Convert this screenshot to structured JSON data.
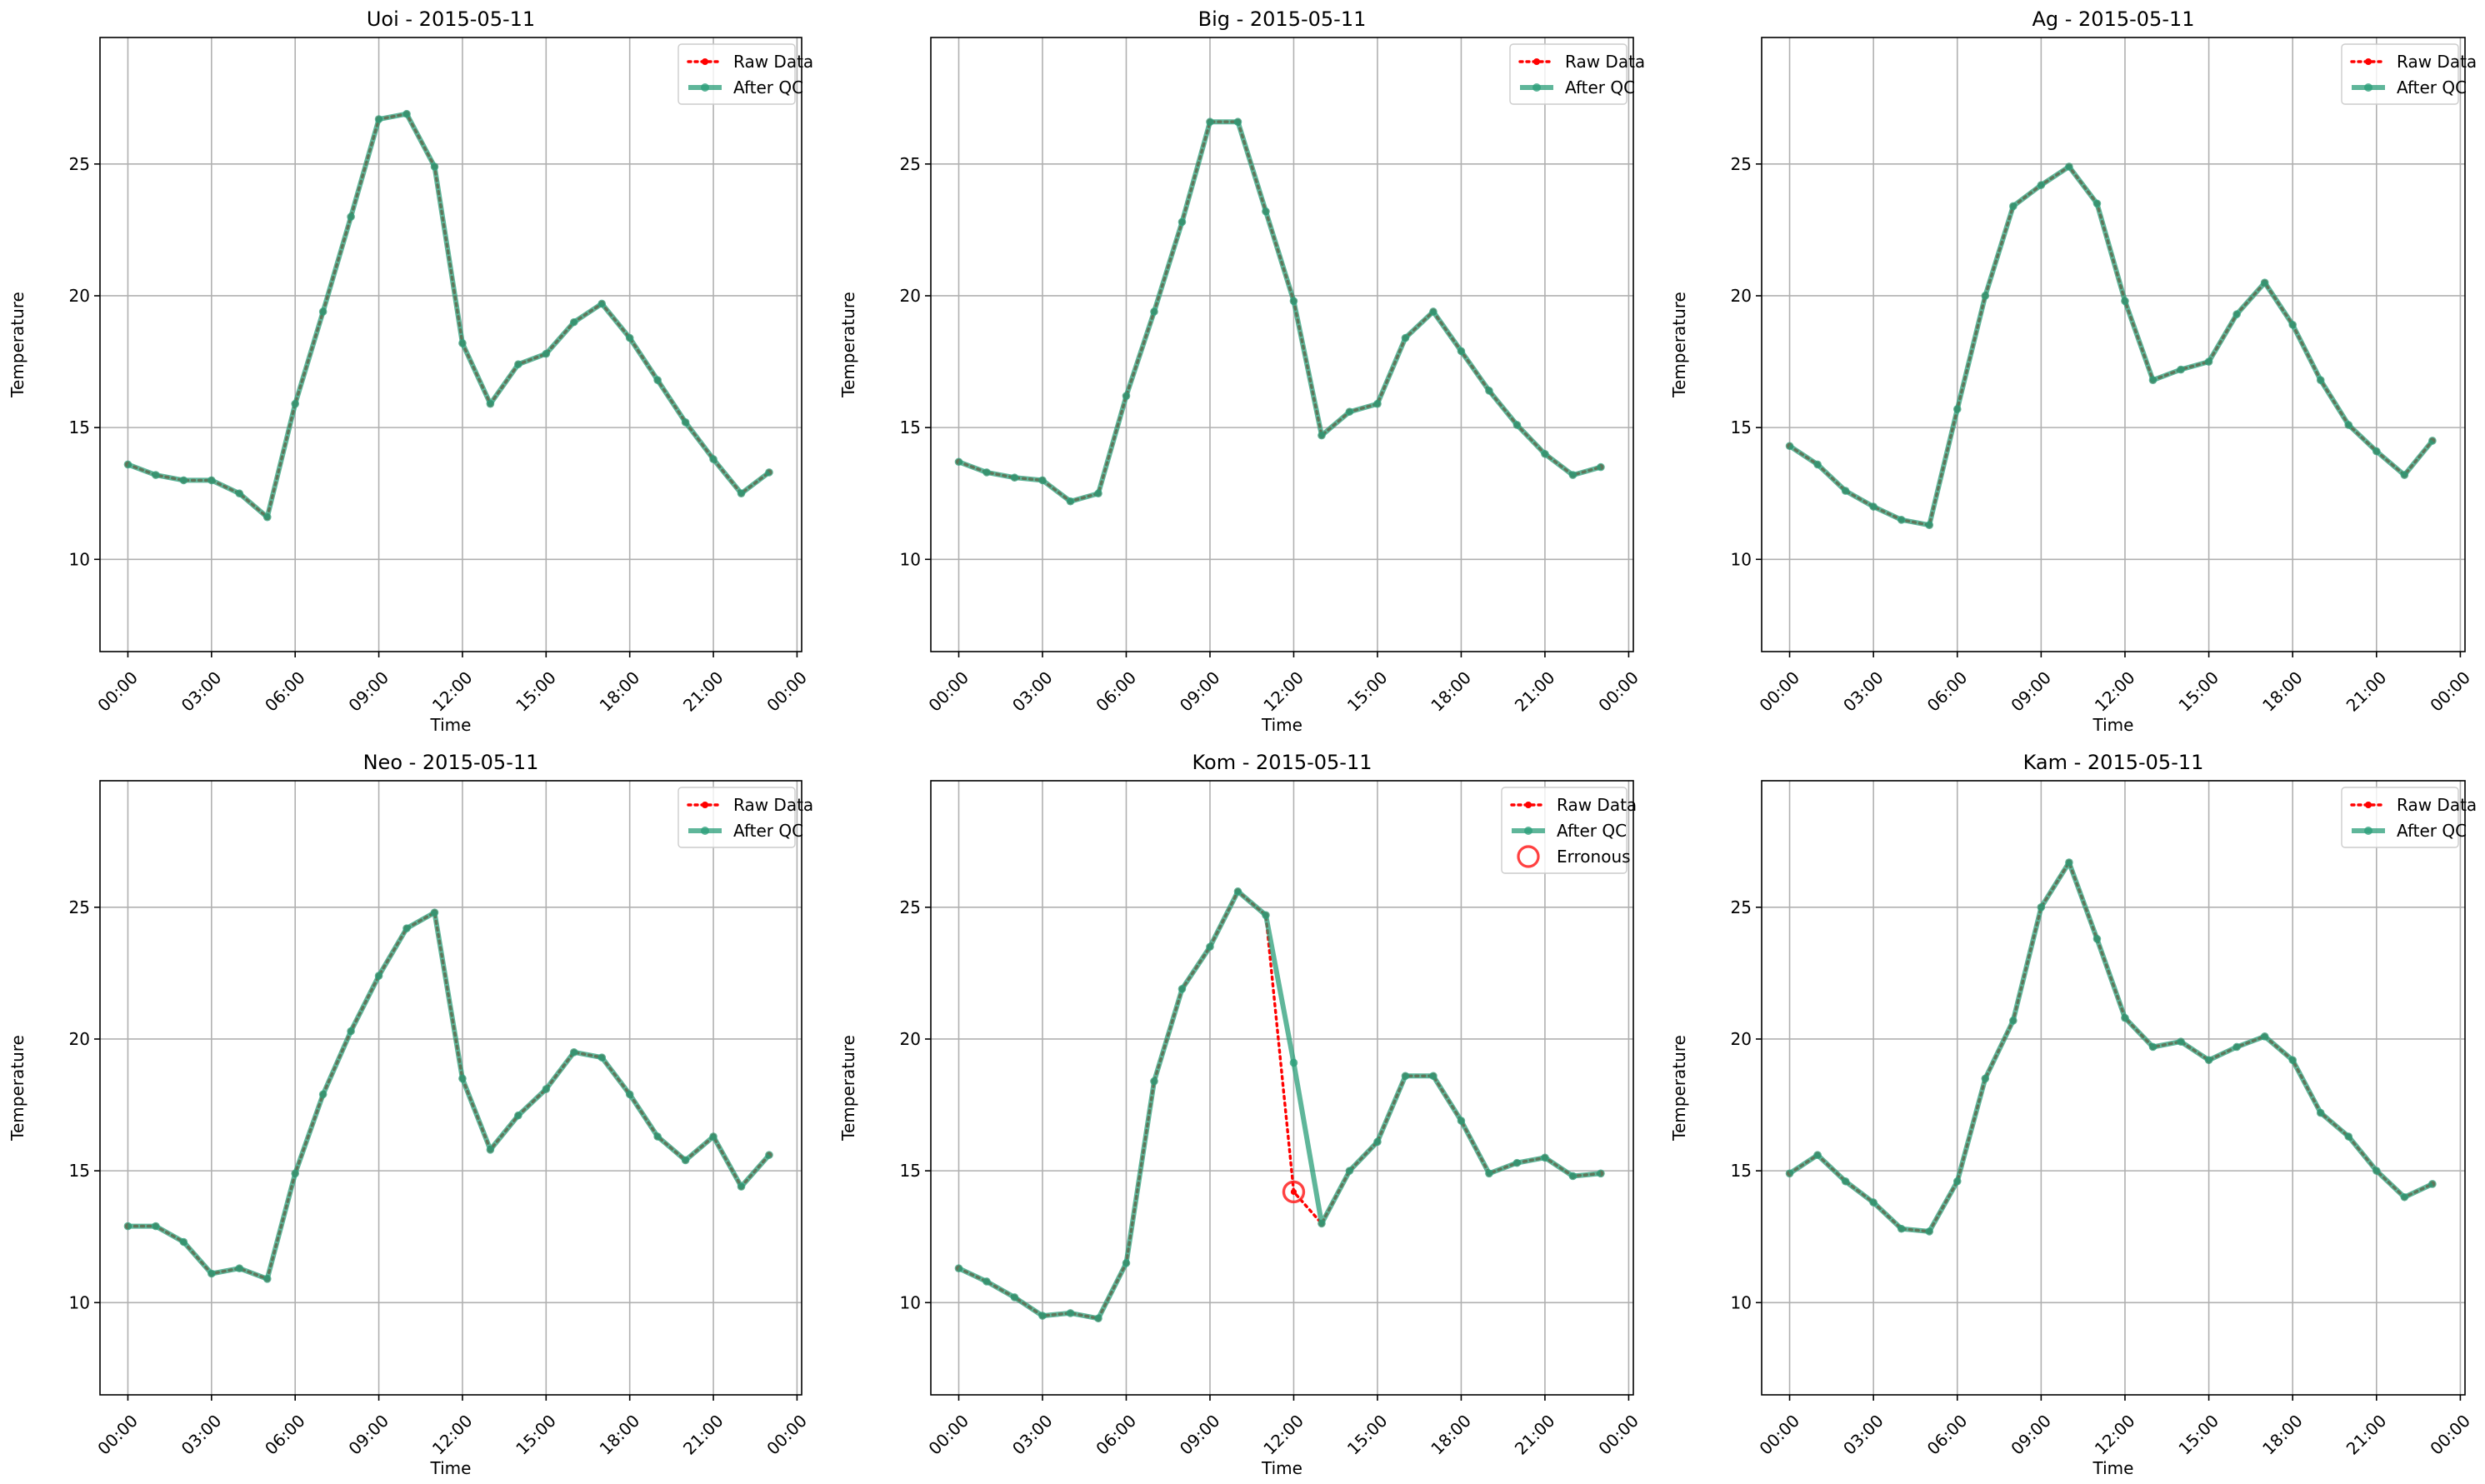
{
  "chart_data": [
    {
      "type": "line",
      "title": "Uoi - 2015-05-11",
      "xlabel": "Time",
      "ylabel": "Temperature",
      "xlim": [
        "2015-05-10 23:00",
        "2015-05-12 00:10"
      ],
      "ylim": [
        6.5,
        29.8
      ],
      "x_ticks": [
        "00:00",
        "03:00",
        "06:00",
        "09:00",
        "12:00",
        "15:00",
        "18:00",
        "21:00",
        "00:00"
      ],
      "y_ticks": [
        10,
        15,
        20,
        25
      ],
      "grid": true,
      "legend_position": "top-right",
      "legend": [
        "Raw Data",
        "After QC"
      ],
      "x": [
        "00:00",
        "01:00",
        "02:00",
        "03:00",
        "04:00",
        "05:00",
        "06:00",
        "07:00",
        "08:00",
        "09:00",
        "10:00",
        "11:00",
        "12:00",
        "13:00",
        "14:00",
        "15:00",
        "16:00",
        "17:00",
        "18:00",
        "19:00",
        "20:00",
        "21:00",
        "22:00",
        "23:00"
      ],
      "series": [
        {
          "name": "Raw Data",
          "color": "#ff0000",
          "style": "dotted",
          "values": [
            13.6,
            13.2,
            13.0,
            13.0,
            12.5,
            11.6,
            15.9,
            19.4,
            23.0,
            26.7,
            26.9,
            24.9,
            18.2,
            15.9,
            17.4,
            17.8,
            19.0,
            19.7,
            18.4,
            16.8,
            15.2,
            13.8,
            12.5,
            13.3
          ]
        },
        {
          "name": "After QC",
          "color": "#2a9d78",
          "style": "solid",
          "values": [
            13.6,
            13.2,
            13.0,
            13.0,
            12.5,
            11.6,
            15.9,
            19.4,
            23.0,
            26.7,
            26.9,
            24.9,
            18.2,
            15.9,
            17.4,
            17.8,
            19.0,
            19.7,
            18.4,
            16.8,
            15.2,
            13.8,
            12.5,
            13.3
          ]
        }
      ],
      "erroneous_points": []
    },
    {
      "type": "line",
      "title": "Big - 2015-05-11",
      "xlabel": "Time",
      "ylabel": "Temperature",
      "xlim": [
        "2015-05-10 23:00",
        "2015-05-12 00:10"
      ],
      "ylim": [
        6.5,
        29.8
      ],
      "x_ticks": [
        "00:00",
        "03:00",
        "06:00",
        "09:00",
        "12:00",
        "15:00",
        "18:00",
        "21:00",
        "00:00"
      ],
      "y_ticks": [
        10,
        15,
        20,
        25
      ],
      "grid": true,
      "legend_position": "top-right",
      "legend": [
        "Raw Data",
        "After QC"
      ],
      "x": [
        "00:00",
        "01:00",
        "02:00",
        "03:00",
        "04:00",
        "05:00",
        "06:00",
        "07:00",
        "08:00",
        "09:00",
        "10:00",
        "11:00",
        "12:00",
        "13:00",
        "14:00",
        "15:00",
        "16:00",
        "17:00",
        "18:00",
        "19:00",
        "20:00",
        "21:00",
        "22:00",
        "23:00"
      ],
      "series": [
        {
          "name": "Raw Data",
          "color": "#ff0000",
          "style": "dotted",
          "values": [
            13.7,
            13.3,
            13.1,
            13.0,
            12.2,
            12.5,
            16.2,
            19.4,
            22.8,
            26.6,
            26.6,
            23.2,
            19.8,
            14.7,
            15.6,
            15.9,
            18.4,
            19.4,
            17.9,
            16.4,
            15.1,
            14.0,
            13.2,
            13.5
          ]
        },
        {
          "name": "After QC",
          "color": "#2a9d78",
          "style": "solid",
          "values": [
            13.7,
            13.3,
            13.1,
            13.0,
            12.2,
            12.5,
            16.2,
            19.4,
            22.8,
            26.6,
            26.6,
            23.2,
            19.8,
            14.7,
            15.6,
            15.9,
            18.4,
            19.4,
            17.9,
            16.4,
            15.1,
            14.0,
            13.2,
            13.5
          ]
        }
      ],
      "erroneous_points": []
    },
    {
      "type": "line",
      "title": "Ag - 2015-05-11",
      "xlabel": "Time",
      "ylabel": "Temperature",
      "xlim": [
        "2015-05-10 23:00",
        "2015-05-12 00:10"
      ],
      "ylim": [
        6.5,
        29.8
      ],
      "x_ticks": [
        "00:00",
        "03:00",
        "06:00",
        "09:00",
        "12:00",
        "15:00",
        "18:00",
        "21:00",
        "00:00"
      ],
      "y_ticks": [
        10,
        15,
        20,
        25
      ],
      "grid": true,
      "legend_position": "top-right",
      "legend": [
        "Raw Data",
        "After QC"
      ],
      "x": [
        "00:00",
        "01:00",
        "02:00",
        "03:00",
        "04:00",
        "05:00",
        "06:00",
        "07:00",
        "08:00",
        "09:00",
        "10:00",
        "11:00",
        "12:00",
        "13:00",
        "14:00",
        "15:00",
        "16:00",
        "17:00",
        "18:00",
        "19:00",
        "20:00",
        "21:00",
        "22:00",
        "23:00"
      ],
      "series": [
        {
          "name": "Raw Data",
          "color": "#ff0000",
          "style": "dotted",
          "values": [
            14.3,
            13.6,
            12.6,
            12.0,
            11.5,
            11.3,
            15.7,
            20.0,
            23.4,
            24.2,
            24.9,
            23.5,
            19.8,
            16.8,
            17.2,
            17.5,
            19.3,
            20.5,
            18.9,
            16.8,
            15.1,
            14.1,
            13.2,
            14.5
          ]
        },
        {
          "name": "After QC",
          "color": "#2a9d78",
          "style": "solid",
          "values": [
            14.3,
            13.6,
            12.6,
            12.0,
            11.5,
            11.3,
            15.7,
            20.0,
            23.4,
            24.2,
            24.9,
            23.5,
            19.8,
            16.8,
            17.2,
            17.5,
            19.3,
            20.5,
            18.9,
            16.8,
            15.1,
            14.1,
            13.2,
            14.5
          ]
        }
      ],
      "erroneous_points": []
    },
    {
      "type": "line",
      "title": "Neo - 2015-05-11",
      "xlabel": "Time",
      "ylabel": "Temperature",
      "xlim": [
        "2015-05-10 23:00",
        "2015-05-12 00:10"
      ],
      "ylim": [
        6.5,
        29.8
      ],
      "x_ticks": [
        "00:00",
        "03:00",
        "06:00",
        "09:00",
        "12:00",
        "15:00",
        "18:00",
        "21:00",
        "00:00"
      ],
      "y_ticks": [
        10,
        15,
        20,
        25
      ],
      "grid": true,
      "legend_position": "top-right",
      "legend": [
        "Raw Data",
        "After QC"
      ],
      "x": [
        "00:00",
        "01:00",
        "02:00",
        "03:00",
        "04:00",
        "05:00",
        "06:00",
        "07:00",
        "08:00",
        "09:00",
        "10:00",
        "11:00",
        "12:00",
        "13:00",
        "14:00",
        "15:00",
        "16:00",
        "17:00",
        "18:00",
        "19:00",
        "20:00",
        "21:00",
        "22:00",
        "23:00"
      ],
      "series": [
        {
          "name": "Raw Data",
          "color": "#ff0000",
          "style": "dotted",
          "values": [
            12.9,
            12.9,
            12.3,
            11.1,
            11.3,
            10.9,
            14.9,
            17.9,
            20.3,
            22.4,
            24.2,
            24.8,
            18.5,
            15.8,
            17.1,
            18.1,
            19.5,
            19.3,
            17.9,
            16.3,
            15.4,
            16.3,
            14.4,
            15.6
          ]
        },
        {
          "name": "After QC",
          "color": "#2a9d78",
          "style": "solid",
          "values": [
            12.9,
            12.9,
            12.3,
            11.1,
            11.3,
            10.9,
            14.9,
            17.9,
            20.3,
            22.4,
            24.2,
            24.8,
            18.5,
            15.8,
            17.1,
            18.1,
            19.5,
            19.3,
            17.9,
            16.3,
            15.4,
            16.3,
            14.4,
            15.6
          ]
        }
      ],
      "erroneous_points": []
    },
    {
      "type": "line",
      "title": "Kom - 2015-05-11",
      "xlabel": "Time",
      "ylabel": "Temperature",
      "xlim": [
        "2015-05-10 23:00",
        "2015-05-12 00:10"
      ],
      "ylim": [
        6.5,
        29.8
      ],
      "x_ticks": [
        "00:00",
        "03:00",
        "06:00",
        "09:00",
        "12:00",
        "15:00",
        "18:00",
        "21:00",
        "00:00"
      ],
      "y_ticks": [
        10,
        15,
        20,
        25
      ],
      "grid": true,
      "legend_position": "top-right",
      "legend": [
        "Raw Data",
        "After QC",
        "Erronous"
      ],
      "x": [
        "00:00",
        "01:00",
        "02:00",
        "03:00",
        "04:00",
        "05:00",
        "06:00",
        "07:00",
        "08:00",
        "09:00",
        "10:00",
        "11:00",
        "12:00",
        "13:00",
        "14:00",
        "15:00",
        "16:00",
        "17:00",
        "18:00",
        "19:00",
        "20:00",
        "21:00",
        "22:00",
        "23:00"
      ],
      "series": [
        {
          "name": "Raw Data",
          "color": "#ff0000",
          "style": "dotted",
          "values": [
            11.3,
            10.8,
            10.2,
            9.5,
            9.6,
            9.4,
            11.5,
            18.4,
            21.9,
            23.5,
            25.6,
            24.7,
            14.2,
            13.0,
            15.0,
            16.1,
            18.6,
            18.6,
            16.9,
            14.9,
            15.3,
            15.5,
            14.8,
            14.9
          ]
        },
        {
          "name": "After QC",
          "color": "#2a9d78",
          "style": "solid",
          "values": [
            11.3,
            10.8,
            10.2,
            9.5,
            9.6,
            9.4,
            11.5,
            18.4,
            21.9,
            23.5,
            25.6,
            24.7,
            19.1,
            13.0,
            15.0,
            16.1,
            18.6,
            18.6,
            16.9,
            14.9,
            15.3,
            15.5,
            14.8,
            14.9
          ]
        }
      ],
      "erroneous_points": [
        {
          "x": "12:00",
          "y": 14.2
        }
      ]
    },
    {
      "type": "line",
      "title": "Kam - 2015-05-11",
      "xlabel": "Time",
      "ylabel": "Temperature",
      "xlim": [
        "2015-05-10 23:00",
        "2015-05-12 00:10"
      ],
      "ylim": [
        6.5,
        29.8
      ],
      "x_ticks": [
        "00:00",
        "03:00",
        "06:00",
        "09:00",
        "12:00",
        "15:00",
        "18:00",
        "21:00",
        "00:00"
      ],
      "y_ticks": [
        10,
        15,
        20,
        25
      ],
      "grid": true,
      "legend_position": "top-right",
      "legend": [
        "Raw Data",
        "After QC"
      ],
      "x": [
        "00:00",
        "01:00",
        "02:00",
        "03:00",
        "04:00",
        "05:00",
        "06:00",
        "07:00",
        "08:00",
        "09:00",
        "10:00",
        "11:00",
        "12:00",
        "13:00",
        "14:00",
        "15:00",
        "16:00",
        "17:00",
        "18:00",
        "19:00",
        "20:00",
        "21:00",
        "22:00",
        "23:00"
      ],
      "series": [
        {
          "name": "Raw Data",
          "color": "#ff0000",
          "style": "dotted",
          "values": [
            14.9,
            15.6,
            14.6,
            13.8,
            12.8,
            12.7,
            14.6,
            18.5,
            20.7,
            25.0,
            26.7,
            23.8,
            20.8,
            19.7,
            19.9,
            19.2,
            19.7,
            20.1,
            19.2,
            17.2,
            16.3,
            15.0,
            14.0,
            14.5
          ]
        },
        {
          "name": "After QC",
          "color": "#2a9d78",
          "style": "solid",
          "values": [
            14.9,
            15.6,
            14.6,
            13.8,
            12.8,
            12.7,
            14.6,
            18.5,
            20.7,
            25.0,
            26.7,
            23.8,
            20.8,
            19.7,
            19.9,
            19.2,
            19.7,
            20.1,
            19.2,
            17.2,
            16.3,
            15.0,
            14.0,
            14.5
          ]
        }
      ],
      "erroneous_points": []
    }
  ]
}
